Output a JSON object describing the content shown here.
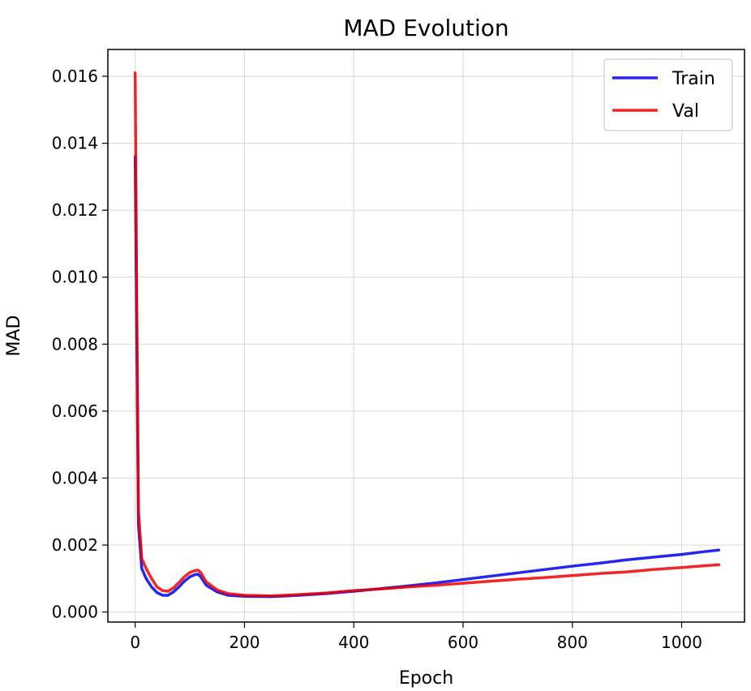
{
  "chart_data": {
    "type": "line",
    "title": "MAD Evolution",
    "xlabel": "Epoch",
    "ylabel": "MAD",
    "xlim": [
      -50,
      1115
    ],
    "ylim": [
      -0.0003,
      0.0168
    ],
    "xticks": [
      0,
      200,
      400,
      600,
      800,
      1000
    ],
    "xtick_labels": [
      "0",
      "200",
      "400",
      "600",
      "800",
      "1000"
    ],
    "yticks": [
      0.0,
      0.002,
      0.004,
      0.006,
      0.008,
      0.01,
      0.012,
      0.014,
      0.016
    ],
    "ytick_labels": [
      "0.000",
      "0.002",
      "0.004",
      "0.006",
      "0.008",
      "0.010",
      "0.012",
      "0.014",
      "0.016"
    ],
    "grid": true,
    "legend_position": "top-right",
    "series": [
      {
        "name": "Train",
        "color": "#0000ee",
        "points": [
          [
            0,
            0.0136
          ],
          [
            3,
            0.008
          ],
          [
            6,
            0.0026
          ],
          [
            12,
            0.0013
          ],
          [
            20,
            0.001
          ],
          [
            30,
            0.00075
          ],
          [
            40,
            0.00058
          ],
          [
            50,
            0.0005
          ],
          [
            60,
            0.0005
          ],
          [
            70,
            0.0006
          ],
          [
            80,
            0.00075
          ],
          [
            90,
            0.00092
          ],
          [
            100,
            0.00105
          ],
          [
            110,
            0.00112
          ],
          [
            115,
            0.00113
          ],
          [
            120,
            0.00105
          ],
          [
            130,
            0.0008
          ],
          [
            150,
            0.0006
          ],
          [
            170,
            0.0005
          ],
          [
            200,
            0.00047
          ],
          [
            250,
            0.00046
          ],
          [
            300,
            0.0005
          ],
          [
            350,
            0.00055
          ],
          [
            400,
            0.00062
          ],
          [
            450,
            0.0007
          ],
          [
            500,
            0.00078
          ],
          [
            550,
            0.00087
          ],
          [
            600,
            0.00097
          ],
          [
            650,
            0.00107
          ],
          [
            700,
            0.00117
          ],
          [
            750,
            0.00127
          ],
          [
            800,
            0.00137
          ],
          [
            850,
            0.00146
          ],
          [
            900,
            0.00156
          ],
          [
            950,
            0.00164
          ],
          [
            1000,
            0.00172
          ],
          [
            1040,
            0.0018
          ],
          [
            1068,
            0.00185
          ]
        ]
      },
      {
        "name": "Val",
        "color": "#ee0000",
        "points": [
          [
            0,
            0.0161
          ],
          [
            3,
            0.009
          ],
          [
            6,
            0.003
          ],
          [
            12,
            0.0016
          ],
          [
            20,
            0.0013
          ],
          [
            30,
            0.001
          ],
          [
            40,
            0.00075
          ],
          [
            50,
            0.00064
          ],
          [
            60,
            0.00062
          ],
          [
            70,
            0.00072
          ],
          [
            80,
            0.00088
          ],
          [
            90,
            0.00105
          ],
          [
            100,
            0.00118
          ],
          [
            110,
            0.00124
          ],
          [
            115,
            0.00125
          ],
          [
            120,
            0.00118
          ],
          [
            130,
            0.0009
          ],
          [
            150,
            0.00066
          ],
          [
            170,
            0.00055
          ],
          [
            200,
            0.0005
          ],
          [
            250,
            0.00048
          ],
          [
            300,
            0.00052
          ],
          [
            350,
            0.00057
          ],
          [
            400,
            0.00064
          ],
          [
            450,
            0.00069
          ],
          [
            500,
            0.00075
          ],
          [
            550,
            0.0008
          ],
          [
            600,
            0.00086
          ],
          [
            650,
            0.00092
          ],
          [
            700,
            0.00098
          ],
          [
            750,
            0.00103
          ],
          [
            800,
            0.00109
          ],
          [
            850,
            0.00115
          ],
          [
            900,
            0.0012
          ],
          [
            950,
            0.00127
          ],
          [
            1000,
            0.00133
          ],
          [
            1040,
            0.00138
          ],
          [
            1068,
            0.00141
          ]
        ]
      }
    ]
  }
}
